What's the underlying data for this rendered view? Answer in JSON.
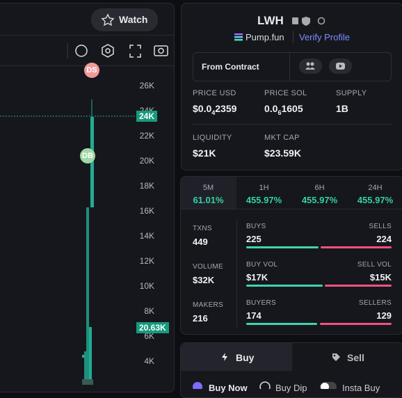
{
  "watch": "Watch",
  "chart": {
    "markers": [
      "DS",
      "DB"
    ],
    "axis_labels": [
      "26K",
      "24K",
      "22K",
      "20K",
      "18K",
      "16K",
      "14K",
      "12K",
      "10K",
      "8K",
      "6K",
      "4K"
    ],
    "price_tags": [
      "24K",
      "20.63K"
    ]
  },
  "token": {
    "symbol": "LWH",
    "platform": "Pump.fun",
    "verify": "Verify Profile",
    "from_contract": "From Contract",
    "stats": [
      {
        "label": "PRICE USD",
        "value": [
          "$0.0",
          "4",
          "2359"
        ]
      },
      {
        "label": "PRICE SOL",
        "value": [
          "0.0",
          "6",
          "1605"
        ]
      },
      {
        "label": "SUPPLY",
        "value": [
          "1B"
        ]
      },
      {
        "label": "LIQUIDITY",
        "value": [
          "$21K"
        ]
      },
      {
        "label": "MKT CAP",
        "value": [
          "$23.59K"
        ]
      }
    ]
  },
  "changes": [
    {
      "period": "5M",
      "value": "61.01%"
    },
    {
      "period": "1H",
      "value": "455.97%"
    },
    {
      "period": "6H",
      "value": "455.97%"
    },
    {
      "period": "24H",
      "value": "455.97%"
    }
  ],
  "activity": [
    {
      "label": "TXNS",
      "value": "449",
      "left_label": "BUYS",
      "left": "225",
      "right_label": "SELLS",
      "right": "224"
    },
    {
      "label": "VOLUME",
      "value": "$32K",
      "left_label": "BUY VOL",
      "left": "$17K",
      "right_label": "SELL VOL",
      "right": "$15K"
    },
    {
      "label": "MAKERS",
      "value": "216",
      "left_label": "BUYERS",
      "left": "174",
      "right_label": "SELLERS",
      "right": "129"
    }
  ],
  "trade": {
    "tabs": [
      "Buy",
      "Sell"
    ],
    "options": [
      "Buy Now",
      "Buy Dip",
      "Insta Buy"
    ]
  }
}
